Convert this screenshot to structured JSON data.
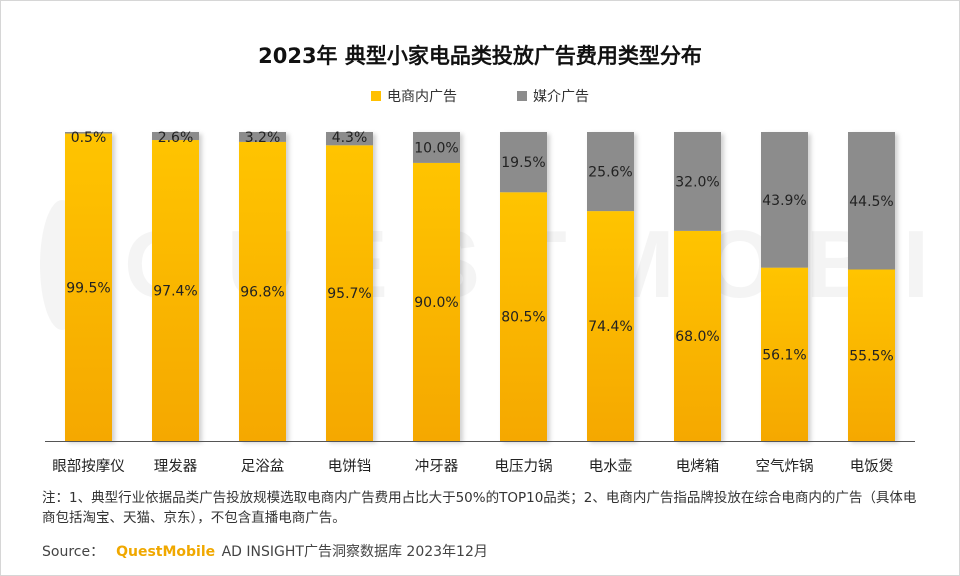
{
  "chart_data": {
    "type": "bar",
    "stacked": true,
    "title": "2023年 典型小家电品类投放广告费用类型分布",
    "categories": [
      "眼部按摩仪",
      "理发器",
      "足浴盆",
      "电饼铛",
      "冲牙器",
      "电压力锅",
      "电水壶",
      "电烤箱",
      "空气炸锅",
      "电饭煲"
    ],
    "series": [
      {
        "name": "电商内广告",
        "color": "#ffc000",
        "values": [
          99.5,
          97.4,
          96.8,
          95.7,
          90.0,
          80.5,
          74.4,
          68.0,
          56.1,
          55.5
        ],
        "labels": [
          "99.5%",
          "97.4%",
          "96.8%",
          "95.7%",
          "90.0%",
          "80.5%",
          "74.4%",
          "68.0%",
          "56.1%",
          "55.5%"
        ]
      },
      {
        "name": "媒介广告",
        "color": "#8c8c8c",
        "values": [
          0.5,
          2.6,
          3.2,
          4.3,
          10.0,
          19.5,
          25.6,
          32.0,
          43.9,
          44.5
        ],
        "labels": [
          "0.5%",
          "2.6%",
          "3.2%",
          "4.3%",
          "10.0%",
          "19.5%",
          "25.6%",
          "32.0%",
          "43.9%",
          "44.5%"
        ]
      }
    ],
    "ylim": [
      0,
      100
    ],
    "grid": false,
    "legend_position": "top-center"
  },
  "watermark": "QUESTMOBILE",
  "note": "注：1、典型行业依据品类广告投放规模选取电商内广告费用占比大于50%的TOP10品类；2、电商内广告指品牌投放在综合电商内的广告（具体电商包括淘宝、天猫、京东），不包含直播电商广告。",
  "source": {
    "label": "Source：",
    "brand": "QuestMobile",
    "rest": " AD INSIGHT广告洞察数据库 2023年12月"
  }
}
